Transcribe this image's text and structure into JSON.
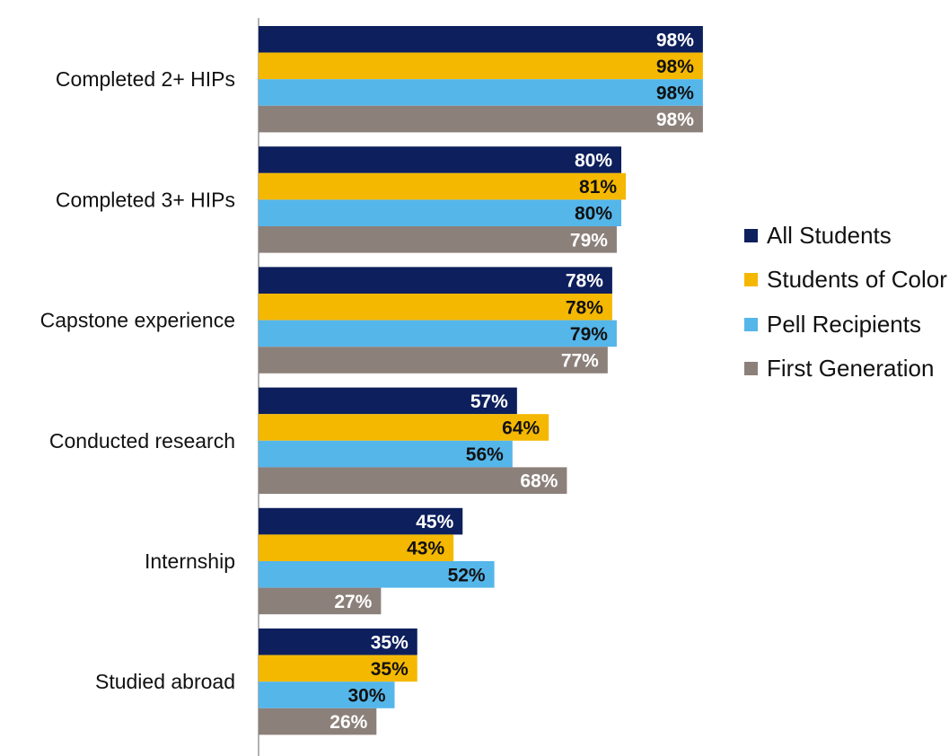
{
  "chart_data": {
    "type": "bar",
    "orientation": "horizontal",
    "categories": [
      "Completed 2+ HIPs",
      "Completed 3+ HIPs",
      "Capstone experience",
      "Conducted research",
      "Internship",
      "Studied abroad"
    ],
    "series": [
      {
        "name": "All Students",
        "color": "#0d1f5c",
        "values": [
          98,
          80,
          78,
          57,
          45,
          35
        ],
        "labels": [
          "98%",
          "80%",
          "78%",
          "57%",
          "45%",
          "35%"
        ]
      },
      {
        "name": "Students of Color",
        "color": "#f5b800",
        "values": [
          98,
          81,
          78,
          64,
          43,
          35
        ],
        "labels": [
          "98%",
          "81%",
          "78%",
          "64%",
          "43%",
          "35%"
        ]
      },
      {
        "name": "Pell Recipients",
        "color": "#55b6ea",
        "values": [
          98,
          80,
          79,
          56,
          52,
          30
        ],
        "labels": [
          "98%",
          "80%",
          "79%",
          "56%",
          "52%",
          "30%"
        ]
      },
      {
        "name": "First Generation",
        "color": "#8c807a",
        "values": [
          98,
          79,
          77,
          68,
          27,
          26
        ],
        "labels": [
          "98%",
          "79%",
          "77%",
          "68%",
          "27%",
          "26%"
        ]
      }
    ],
    "label_colors": [
      "#ffffff",
      "#111111",
      "#111111",
      "#ffffff"
    ],
    "axis_color": "#999999",
    "xlim": [
      0,
      100
    ],
    "grid": false,
    "legend_position": "right"
  }
}
